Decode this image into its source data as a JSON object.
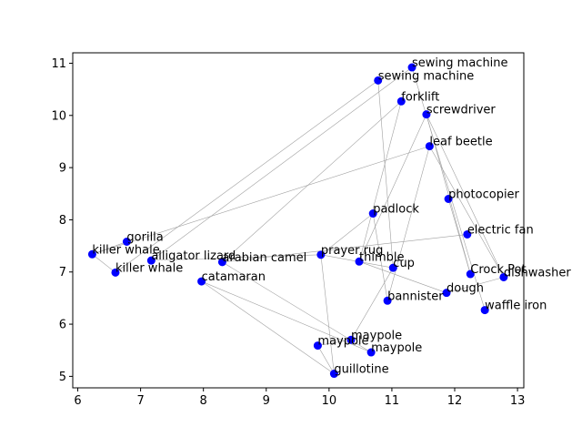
{
  "chart_data": {
    "type": "scatter",
    "title": "",
    "xlabel": "",
    "ylabel": "",
    "xlim": [
      5.92,
      13.1
    ],
    "ylim": [
      4.78,
      11.2
    ],
    "xticks": [
      6,
      7,
      8,
      9,
      10,
      11,
      12,
      13
    ],
    "yticks": [
      5,
      6,
      7,
      8,
      9,
      10,
      11
    ],
    "grid": false,
    "point_color": "#0000ff",
    "line_color": "#a0a0a0",
    "points": [
      {
        "label": "sewing machine",
        "x": 11.32,
        "y": 10.92
      },
      {
        "label": "sewing machine",
        "x": 10.78,
        "y": 10.67
      },
      {
        "label": "forklift",
        "x": 11.15,
        "y": 10.27
      },
      {
        "label": "screwdriver",
        "x": 11.55,
        "y": 10.02
      },
      {
        "label": "leaf beetle",
        "x": 11.6,
        "y": 9.41
      },
      {
        "label": "photocopier",
        "x": 11.9,
        "y": 8.4
      },
      {
        "label": "padlock",
        "x": 10.7,
        "y": 8.12
      },
      {
        "label": "electric fan",
        "x": 12.2,
        "y": 7.72
      },
      {
        "label": "gorilla",
        "x": 6.78,
        "y": 7.58
      },
      {
        "label": "killer whale",
        "x": 6.23,
        "y": 7.34
      },
      {
        "label": "prayer rug",
        "x": 9.87,
        "y": 7.33
      },
      {
        "label": "alligator lizard",
        "x": 7.17,
        "y": 7.22
      },
      {
        "label": "arabian camel",
        "x": 8.3,
        "y": 7.19
      },
      {
        "label": "thimble",
        "x": 10.48,
        "y": 7.2
      },
      {
        "label": "cup",
        "x": 11.02,
        "y": 7.08
      },
      {
        "label": "killer whale",
        "x": 6.6,
        "y": 6.99
      },
      {
        "label": "Crock Pot",
        "x": 12.25,
        "y": 6.96
      },
      {
        "label": "dishwasher",
        "x": 12.78,
        "y": 6.9
      },
      {
        "label": "catamaran",
        "x": 7.97,
        "y": 6.82
      },
      {
        "label": "dough",
        "x": 11.87,
        "y": 6.6
      },
      {
        "label": "bannister",
        "x": 10.93,
        "y": 6.45
      },
      {
        "label": "waffle iron",
        "x": 12.48,
        "y": 6.27
      },
      {
        "label": "maypole",
        "x": 10.35,
        "y": 5.7
      },
      {
        "label": "maypole",
        "x": 9.82,
        "y": 5.59
      },
      {
        "label": "maypole",
        "x": 10.67,
        "y": 5.46
      },
      {
        "label": "guillotine",
        "x": 10.08,
        "y": 5.05
      }
    ],
    "connections": [
      [
        1,
        15
      ],
      [
        1,
        14
      ],
      [
        0,
        11
      ],
      [
        0,
        21
      ],
      [
        2,
        12
      ],
      [
        2,
        13
      ],
      [
        3,
        13
      ],
      [
        3,
        17
      ],
      [
        3,
        16
      ],
      [
        4,
        17
      ],
      [
        4,
        9
      ],
      [
        4,
        20
      ],
      [
        5,
        16
      ],
      [
        6,
        20
      ],
      [
        6,
        10
      ],
      [
        7,
        12
      ],
      [
        8,
        9
      ],
      [
        11,
        10
      ],
      [
        10,
        25
      ],
      [
        10,
        14
      ],
      [
        18,
        25
      ],
      [
        18,
        24
      ],
      [
        13,
        19
      ],
      [
        19,
        17
      ],
      [
        22,
        23
      ],
      [
        22,
        14
      ],
      [
        23,
        25
      ],
      [
        24,
        12
      ],
      [
        15,
        9
      ]
    ]
  }
}
